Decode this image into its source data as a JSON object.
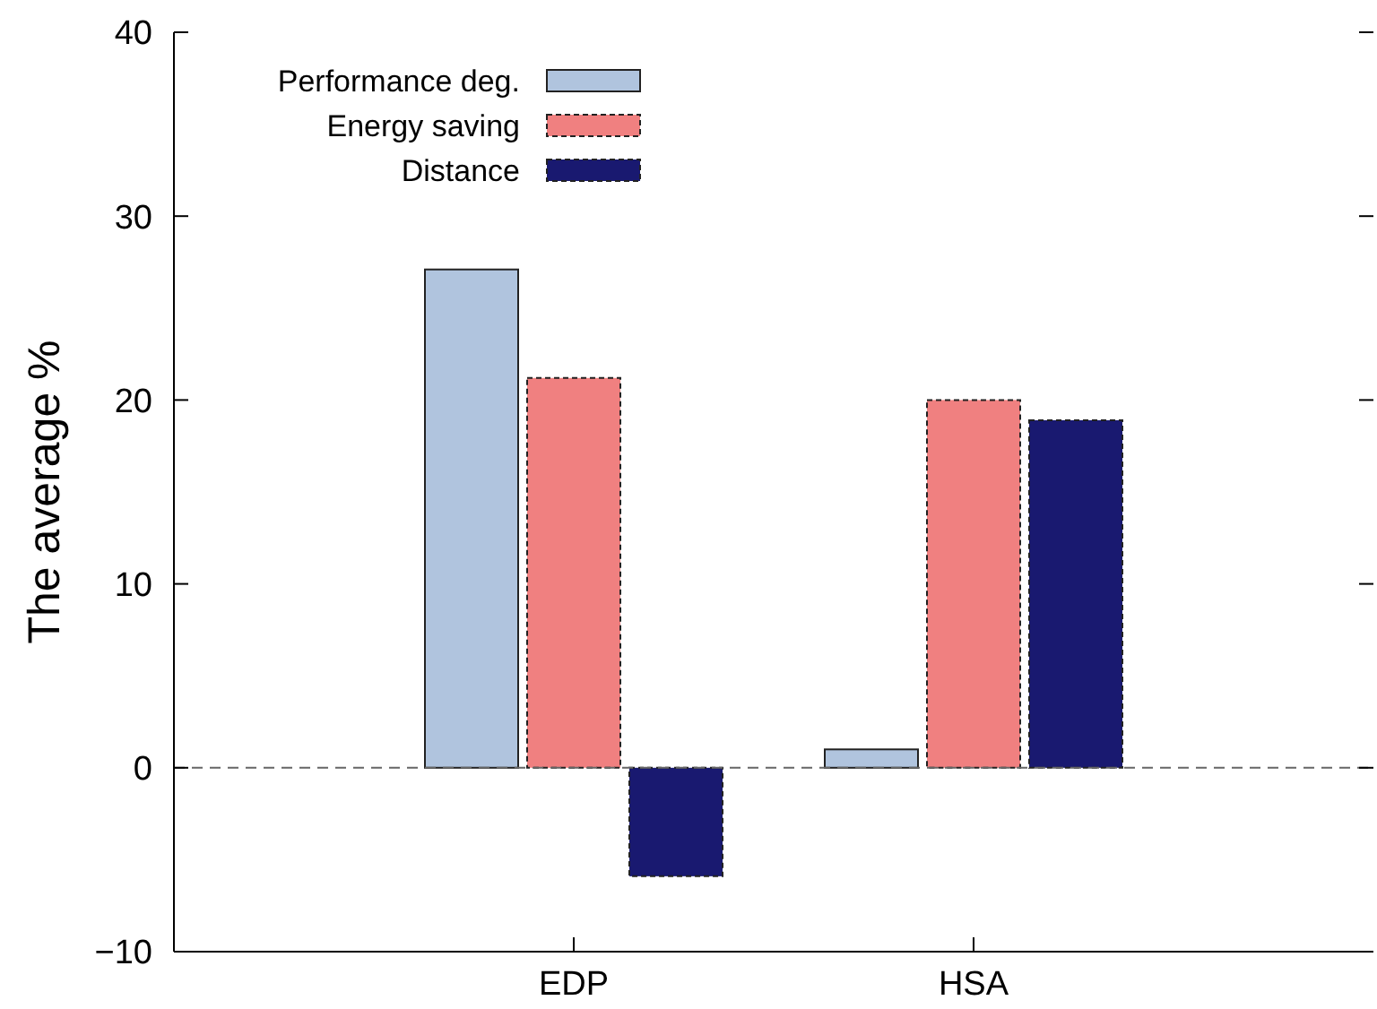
{
  "chart_data": {
    "type": "bar",
    "ylabel": "The average %",
    "categories": [
      "EDP",
      "HSA"
    ],
    "series": [
      {
        "name": "Performance deg.",
        "color": "#b0c4de",
        "values": [
          27.1,
          1.0
        ]
      },
      {
        "name": "Energy saving",
        "color": "#f08080",
        "values": [
          21.2,
          20.0
        ]
      },
      {
        "name": "Distance",
        "color": "#191970",
        "values": [
          -5.9,
          18.9
        ]
      }
    ],
    "ylim": [
      -10,
      40
    ],
    "yticks": [
      {
        "value": -10,
        "label": "−10"
      },
      0,
      10,
      20,
      30,
      40
    ],
    "ref_lines": [
      {
        "axis": "y",
        "value": 0,
        "line_style": "dashed",
        "color": "#666666"
      }
    ],
    "legend": "top left",
    "grid": false
  }
}
